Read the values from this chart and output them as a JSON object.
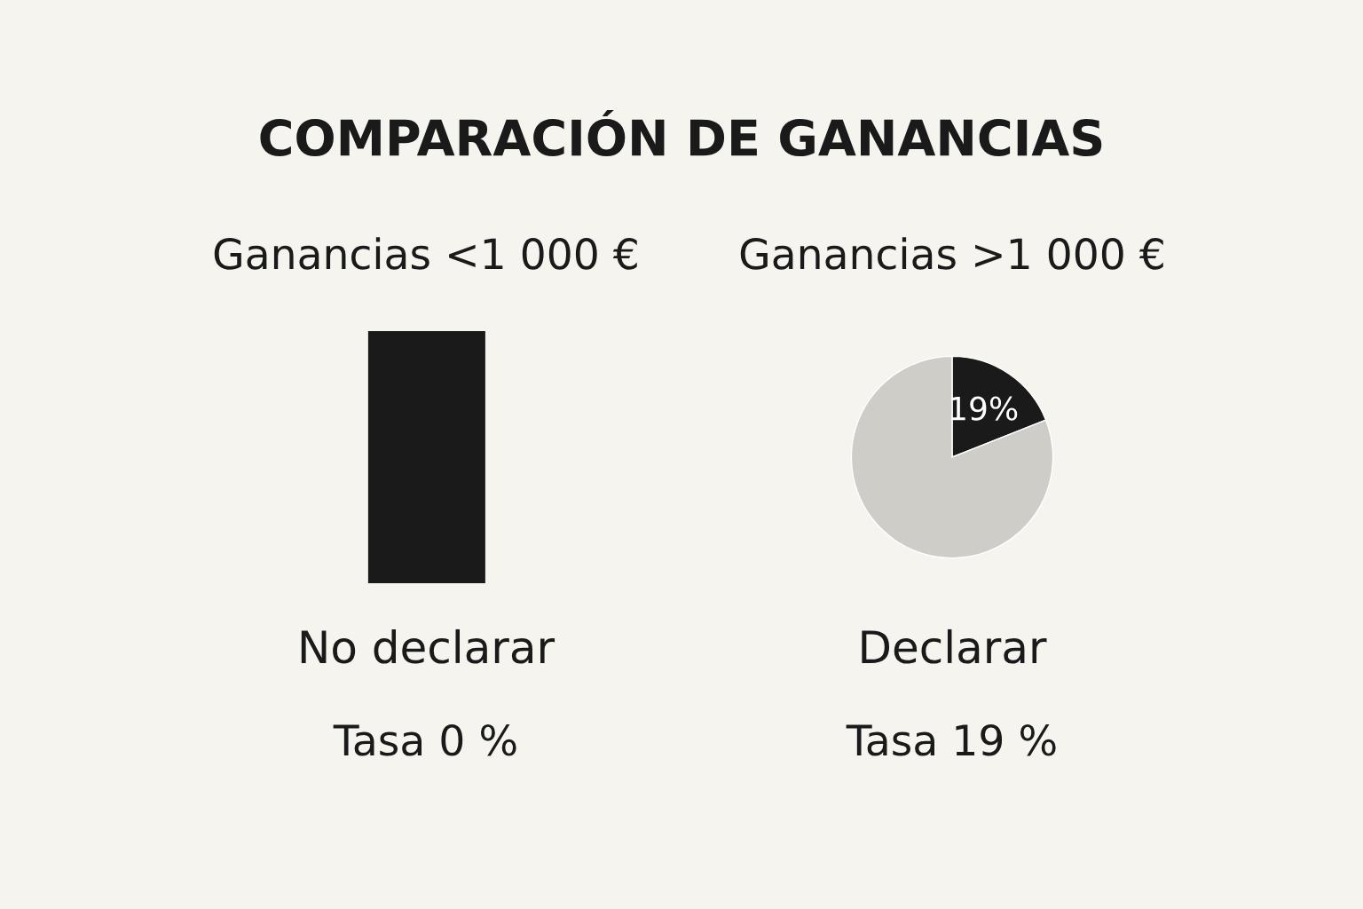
{
  "chart_data": [
    {
      "type": "other",
      "title": "COMPARACIÓN DE GANANCIAS"
    },
    {
      "type": "other",
      "title": "Ganancias <1 000 €",
      "annotations": [
        "No declarar",
        "Tasa 0 %"
      ]
    },
    {
      "type": "pie",
      "title": "Ganancias >1 000 €",
      "categories": [
        null,
        null
      ],
      "values": [
        19,
        81
      ],
      "colors": [
        "#1a1a1a",
        "#cfcdc8"
      ],
      "value_labels": [
        "19%",
        null
      ],
      "annotations": [
        "Declarar",
        "Tasa 19 %"
      ]
    }
  ]
}
